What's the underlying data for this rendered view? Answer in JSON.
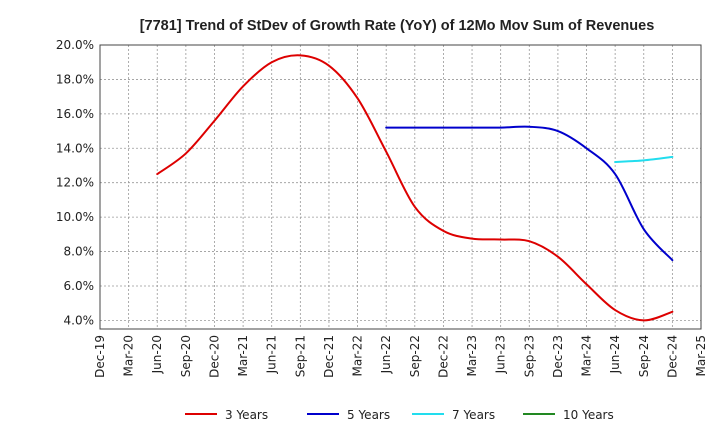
{
  "chart_data": {
    "type": "line",
    "title": "[7781]  Trend of StDev of Growth Rate (YoY) of 12Mo Mov Sum of Revenues",
    "xlabel": "",
    "ylabel": "",
    "ylim": [
      3.5,
      20.0
    ],
    "yticks": [
      4.0,
      6.0,
      8.0,
      10.0,
      12.0,
      14.0,
      16.0,
      18.0,
      20.0
    ],
    "ytick_labels": [
      "4.0%",
      "6.0%",
      "8.0%",
      "10.0%",
      "12.0%",
      "14.0%",
      "16.0%",
      "18.0%",
      "20.0%"
    ],
    "x_tick_labels": [
      "Dec-19",
      "Mar-20",
      "Jun-20",
      "Sep-20",
      "Dec-20",
      "Mar-21",
      "Jun-21",
      "Sep-21",
      "Dec-21",
      "Mar-22",
      "Jun-22",
      "Sep-22",
      "Dec-22",
      "Mar-23",
      "Jun-23",
      "Sep-23",
      "Dec-23",
      "Mar-24",
      "Jun-24",
      "Sep-24",
      "Dec-24",
      "Mar-25"
    ],
    "grid": true,
    "legend_position": "bottom",
    "series": [
      {
        "name": "3 Years",
        "color": "#dd0000",
        "x": [
          2,
          3,
          4,
          5,
          6,
          7,
          8,
          9,
          10,
          11,
          12,
          13,
          14,
          15,
          16,
          17,
          18,
          19,
          20
        ],
        "values": [
          12.5,
          13.7,
          15.6,
          17.6,
          19.0,
          19.4,
          18.8,
          16.9,
          13.8,
          10.6,
          9.2,
          8.75,
          8.7,
          8.6,
          7.7,
          6.1,
          4.6,
          4.0,
          4.5
        ]
      },
      {
        "name": "5 Years",
        "color": "#0000cc",
        "x": [
          10,
          11,
          12,
          13,
          14,
          15,
          16,
          17,
          18,
          19,
          20
        ],
        "values": [
          15.2,
          15.2,
          15.2,
          15.2,
          15.2,
          15.25,
          15.0,
          14.0,
          12.5,
          9.3,
          7.5
        ]
      },
      {
        "name": "7 Years",
        "color": "#22ddee",
        "x": [
          18,
          19,
          20
        ],
        "values": [
          13.2,
          13.3,
          13.5
        ]
      },
      {
        "name": "10 Years",
        "color": "#228822",
        "x": [],
        "values": []
      }
    ]
  }
}
